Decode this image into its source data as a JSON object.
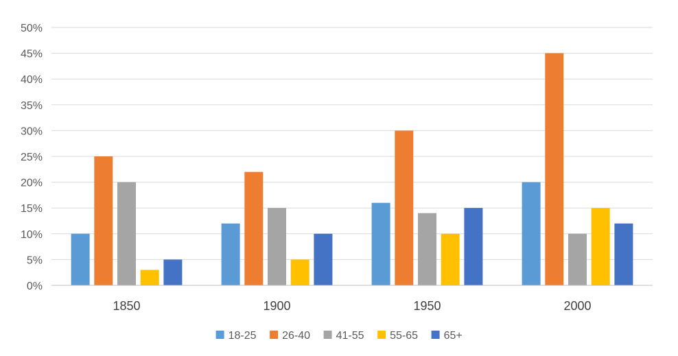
{
  "chart_data": {
    "type": "bar",
    "categories": [
      "1850",
      "1900",
      "1950",
      "2000"
    ],
    "series": [
      {
        "name": "18-25",
        "values": [
          10,
          12,
          16,
          20
        ],
        "color": "#5b9bd5"
      },
      {
        "name": "26-40",
        "values": [
          25,
          22,
          30,
          45
        ],
        "color": "#ed7d31"
      },
      {
        "name": "41-55",
        "values": [
          20,
          15,
          14,
          10
        ],
        "color": "#a5a5a5"
      },
      {
        "name": "55-65",
        "values": [
          3,
          5,
          10,
          15
        ],
        "color": "#ffc000"
      },
      {
        "name": "65+",
        "values": [
          5,
          10,
          15,
          12
        ],
        "color": "#4472c4"
      }
    ],
    "yticks": [
      "0%",
      "5%",
      "10%",
      "15%",
      "20%",
      "25%",
      "30%",
      "35%",
      "40%",
      "45%",
      "50%"
    ],
    "ylim": [
      0,
      50
    ],
    "y_unit": "%",
    "grid": true,
    "legend": "bottom"
  }
}
